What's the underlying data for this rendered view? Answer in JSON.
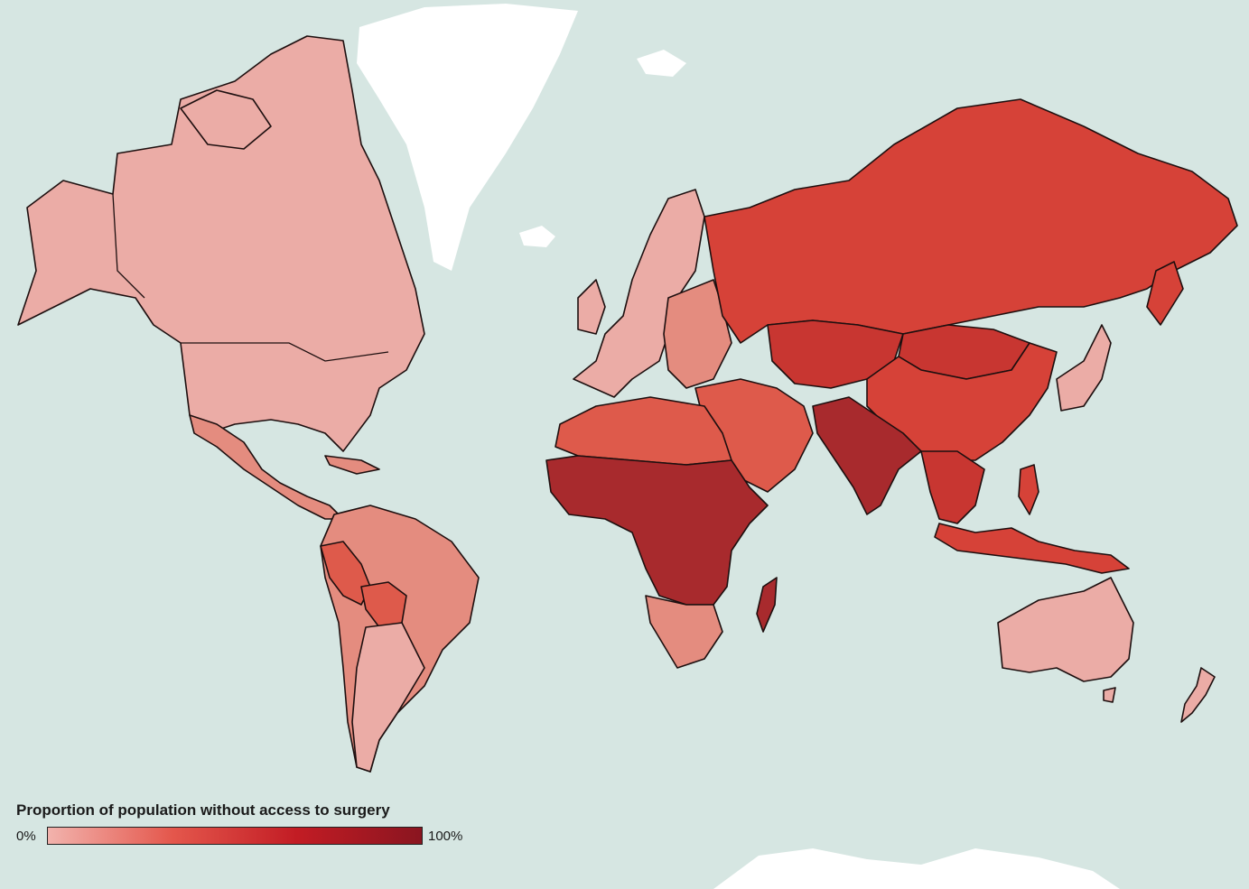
{
  "legend": {
    "title": "Proportion of population without access to surgery",
    "min_label": "0%",
    "max_label": "100%",
    "gradient": [
      "#f2b3ad",
      "#e4574c",
      "#c21c24",
      "#8a1520"
    ]
  },
  "colors": {
    "ocean": "#d6e6e2",
    "ice": "#ffffff",
    "very_low": "#ebaca6",
    "low": "#e48c7f",
    "medium": "#de5a4b",
    "medium_high": "#d64238",
    "high": "#c83631",
    "very_high": "#a82a2d",
    "border": "#1d0f0f"
  },
  "regions": [
    {
      "name": "North America",
      "level": "very_low"
    },
    {
      "name": "Greenland",
      "level": "ice"
    },
    {
      "name": "Mexico and Central America",
      "level": "low"
    },
    {
      "name": "Caribbean",
      "level": "low"
    },
    {
      "name": "South America",
      "level": "low"
    },
    {
      "name": "Bolivia",
      "level": "medium"
    },
    {
      "name": "Peru",
      "level": "medium"
    },
    {
      "name": "Southern Cone",
      "level": "very_low"
    },
    {
      "name": "Western Europe",
      "level": "very_low"
    },
    {
      "name": "Eastern Europe",
      "level": "low"
    },
    {
      "name": "Russia",
      "level": "medium_high"
    },
    {
      "name": "Central Asia",
      "level": "high"
    },
    {
      "name": "Mongolia",
      "level": "high"
    },
    {
      "name": "China",
      "level": "medium_high"
    },
    {
      "name": "Japan and Korea",
      "level": "very_low"
    },
    {
      "name": "Middle East",
      "level": "medium"
    },
    {
      "name": "North Africa",
      "level": "medium"
    },
    {
      "name": "Sub-Saharan Africa",
      "level": "very_high"
    },
    {
      "name": "Southern Africa",
      "level": "low"
    },
    {
      "name": "Madagascar",
      "level": "very_high"
    },
    {
      "name": "South Asia",
      "level": "very_high"
    },
    {
      "name": "Southeast Asia",
      "level": "high"
    },
    {
      "name": "Indonesia and Papua New Guinea",
      "level": "medium_high"
    },
    {
      "name": "Australia",
      "level": "very_low"
    },
    {
      "name": "New Zealand",
      "level": "very_low"
    },
    {
      "name": "Antarctica",
      "level": "ice"
    }
  ]
}
